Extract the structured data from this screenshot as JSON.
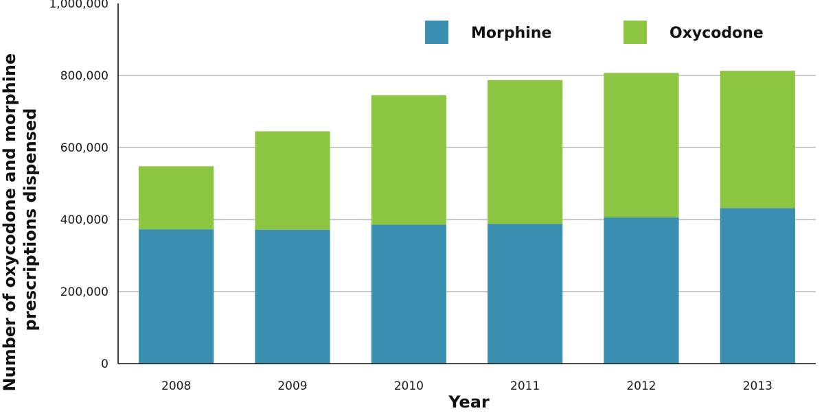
{
  "chart_data": {
    "type": "bar",
    "stacked": true,
    "title": "",
    "xlabel": "Year",
    "ylabel_lines": [
      "Number of oxycodone and morphine",
      "prescriptions dispensed"
    ],
    "categories": [
      "2008",
      "2009",
      "2010",
      "2011",
      "2012",
      "2013"
    ],
    "y_ticks": [
      "0",
      "200,000",
      "400,000",
      "600,000",
      "800,000",
      "1,000,000"
    ],
    "ylim": [
      0,
      1000000
    ],
    "grid": true,
    "legend_position": "top-right",
    "series": [
      {
        "name": "Morphine",
        "color": "#3a8fb0",
        "values": [
          373000,
          372000,
          386000,
          388000,
          406000,
          432000
        ]
      },
      {
        "name": "Oxycodone",
        "color": "#8cc542",
        "values": [
          175000,
          273000,
          359000,
          399000,
          401000,
          381000
        ]
      }
    ]
  }
}
